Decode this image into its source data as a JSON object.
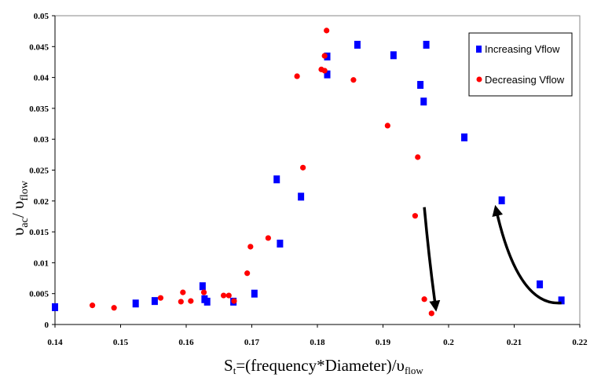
{
  "chart_data": {
    "type": "scatter",
    "title": "",
    "xlabel": {
      "main": "S",
      "sub": "t",
      "rest": "=(frequency*Diameter)/υ",
      "sub2": "flow"
    },
    "ylabel": {
      "a": "υ",
      "a_sub": "ac",
      "sep": "/ υ",
      "b_sub": "flow"
    },
    "xlim": [
      0.14,
      0.22
    ],
    "ylim": [
      0,
      0.05
    ],
    "xticks": [
      "0.14",
      "0.15",
      "0.16",
      "0.17",
      "0.18",
      "0.19",
      "0.2",
      "0.21",
      "0.22"
    ],
    "yticks": [
      "0",
      "0.005",
      "0.01",
      "0.015",
      "0.02",
      "0.025",
      "0.03",
      "0.035",
      "0.04",
      "0.045",
      "0.05"
    ],
    "grid": false,
    "legend_position": "top-right",
    "series": [
      {
        "name": "Increasing Vflow",
        "marker": "square",
        "color": "#0000ff",
        "points": [
          [
            0.14,
            0.0028
          ],
          [
            0.1523,
            0.0034
          ],
          [
            0.1552,
            0.0038
          ],
          [
            0.1625,
            0.0062
          ],
          [
            0.1628,
            0.0041
          ],
          [
            0.1632,
            0.0037
          ],
          [
            0.1672,
            0.0037
          ],
          [
            0.1704,
            0.005
          ],
          [
            0.1743,
            0.0131
          ],
          [
            0.1738,
            0.0235
          ],
          [
            0.1775,
            0.0207
          ],
          [
            0.1815,
            0.0434
          ],
          [
            0.1815,
            0.0405
          ],
          [
            0.1861,
            0.0453
          ],
          [
            0.1916,
            0.0436
          ],
          [
            0.1966,
            0.0453
          ],
          [
            0.1957,
            0.0388
          ],
          [
            0.1962,
            0.0361
          ],
          [
            0.2024,
            0.0303
          ],
          [
            0.2081,
            0.0201
          ],
          [
            0.2139,
            0.0065
          ],
          [
            0.2172,
            0.0039
          ]
        ]
      },
      {
        "name": "Decreasing Vflow",
        "marker": "circle",
        "color": "#ff0000",
        "points": [
          [
            0.1457,
            0.0031
          ],
          [
            0.149,
            0.0027
          ],
          [
            0.1561,
            0.0043
          ],
          [
            0.1592,
            0.0037
          ],
          [
            0.1595,
            0.0052
          ],
          [
            0.1607,
            0.0038
          ],
          [
            0.1627,
            0.0052
          ],
          [
            0.1657,
            0.0047
          ],
          [
            0.1665,
            0.0047
          ],
          [
            0.1673,
            0.0038
          ],
          [
            0.1693,
            0.0083
          ],
          [
            0.1698,
            0.0126
          ],
          [
            0.1725,
            0.014
          ],
          [
            0.1778,
            0.0254
          ],
          [
            0.1769,
            0.0402
          ],
          [
            0.1806,
            0.0413
          ],
          [
            0.1811,
            0.0411
          ],
          [
            0.1811,
            0.0435
          ],
          [
            0.1814,
            0.0476
          ],
          [
            0.1855,
            0.0396
          ],
          [
            0.1907,
            0.0322
          ],
          [
            0.1953,
            0.0271
          ],
          [
            0.1949,
            0.0176
          ],
          [
            0.1963,
            0.0041
          ],
          [
            0.1974,
            0.0018
          ]
        ]
      }
    ],
    "annotations": [
      {
        "type": "arrow",
        "from": [
          0.1963,
          0.019
        ],
        "to": [
          0.198,
          0.0022
        ]
      },
      {
        "type": "arrow",
        "from": [
          0.2172,
          0.0035
        ],
        "to": [
          0.2068,
          0.0195
        ]
      }
    ]
  }
}
